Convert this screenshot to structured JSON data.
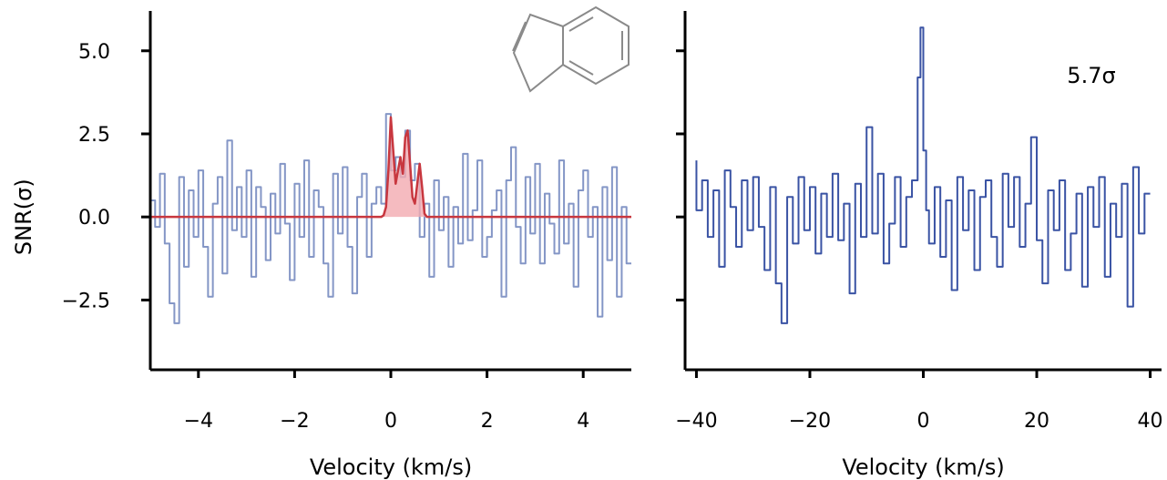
{
  "chart_data": [
    {
      "type": "line",
      "panel": "left",
      "xlabel": "Velocity (km/s)",
      "ylabel": "SNR(σ)",
      "xlim": [
        -5,
        5
      ],
      "ylim": [
        -4.6,
        6.2
      ],
      "xticks": [
        -4,
        -2,
        0,
        2,
        4
      ],
      "xtick_labels": [
        "−4",
        "−2",
        "0",
        "2",
        "4"
      ],
      "yticks": [
        -2.5,
        0.0,
        2.5,
        5.0
      ],
      "ytick_labels": [
        "−2.5",
        "0.0",
        "2.5",
        "5.0"
      ],
      "grid": false,
      "series": [
        {
          "style": "step",
          "color": "#8496c6",
          "x": [
            -5.0,
            -4.9,
            -4.8,
            -4.7,
            -4.6,
            -4.5,
            -4.4,
            -4.3,
            -4.2,
            -4.1,
            -4.0,
            -3.9,
            -3.8,
            -3.7,
            -3.6,
            -3.5,
            -3.4,
            -3.3,
            -3.2,
            -3.1,
            -3.0,
            -2.9,
            -2.8,
            -2.7,
            -2.6,
            -2.5,
            -2.4,
            -2.3,
            -2.2,
            -2.1,
            -2.0,
            -1.9,
            -1.8,
            -1.7,
            -1.6,
            -1.5,
            -1.4,
            -1.3,
            -1.2,
            -1.1,
            -1.0,
            -0.9,
            -0.8,
            -0.7,
            -0.6,
            -0.5,
            -0.4,
            -0.3,
            -0.2,
            -0.1,
            0.0,
            0.1,
            0.2,
            0.3,
            0.4,
            0.5,
            0.6,
            0.7,
            0.8,
            0.9,
            1.0,
            1.1,
            1.2,
            1.3,
            1.4,
            1.5,
            1.6,
            1.7,
            1.8,
            1.9,
            2.0,
            2.1,
            2.2,
            2.3,
            2.4,
            2.5,
            2.6,
            2.7,
            2.8,
            2.9,
            3.0,
            3.1,
            3.2,
            3.3,
            3.4,
            3.5,
            3.6,
            3.7,
            3.8,
            3.9,
            4.0,
            4.1,
            4.2,
            4.3,
            4.4,
            4.5,
            4.6,
            4.7,
            4.8,
            4.9,
            5.0
          ],
          "y": [
            1.7,
            0.5,
            -0.3,
            1.3,
            -0.8,
            -2.6,
            -3.2,
            1.2,
            -1.5,
            0.8,
            -0.6,
            1.4,
            -0.9,
            -2.4,
            0.4,
            1.2,
            -1.7,
            2.3,
            -0.4,
            0.9,
            -0.6,
            1.4,
            -1.8,
            0.9,
            0.3,
            -1.3,
            0.7,
            -0.5,
            1.6,
            -0.2,
            -1.9,
            1.0,
            -0.6,
            1.7,
            -1.2,
            0.8,
            0.3,
            -1.4,
            -2.4,
            1.3,
            -0.5,
            1.5,
            -0.9,
            -2.3,
            0.6,
            1.3,
            -1.2,
            0.4,
            0.9,
            0.4,
            3.1,
            1.4,
            1.8,
            1.2,
            2.6,
            1.1,
            1.6,
            -0.6,
            0.4,
            -1.8,
            1.1,
            -0.4,
            0.6,
            -1.5,
            0.3,
            -0.8,
            1.9,
            -0.7,
            0.2,
            1.7,
            -1.2,
            -0.6,
            0.2,
            0.8,
            -2.4,
            1.1,
            2.1,
            -0.3,
            -1.4,
            1.2,
            -0.5,
            1.6,
            -1.4,
            0.7,
            -0.2,
            -1.1,
            1.7,
            -0.8,
            0.4,
            -2.1,
            0.8,
            1.4,
            -0.6,
            0.3,
            -3.0,
            0.9,
            -1.3,
            1.5,
            -2.4,
            0.3,
            -1.4
          ]
        },
        {
          "style": "line",
          "color": "#c8373f",
          "fill": "#f2aab0",
          "x": [
            -5.0,
            -0.2,
            -0.15,
            -0.1,
            -0.05,
            0.0,
            0.05,
            0.1,
            0.15,
            0.2,
            0.25,
            0.3,
            0.35,
            0.4,
            0.45,
            0.5,
            0.55,
            0.6,
            0.65,
            0.7,
            0.75,
            5.0
          ],
          "y": [
            0.0,
            0.0,
            0.05,
            0.3,
            1.4,
            3.0,
            2.0,
            1.0,
            1.4,
            1.8,
            1.3,
            2.4,
            2.6,
            1.6,
            0.6,
            0.4,
            1.0,
            1.6,
            0.9,
            0.1,
            0.0,
            0.0
          ]
        }
      ],
      "inset": "indene-structure-icon"
    },
    {
      "type": "line",
      "panel": "right",
      "xlabel": "Velocity (km/s)",
      "xlim": [
        -42,
        42
      ],
      "ylim": [
        -4.6,
        6.2
      ],
      "xticks": [
        -40,
        -20,
        0,
        20,
        40
      ],
      "xtick_labels": [
        "−40",
        "−20",
        "0",
        "20",
        "40"
      ],
      "yticks": [
        -2.5,
        0.0,
        2.5,
        5.0
      ],
      "grid": false,
      "annotation": "5.7σ",
      "series": [
        {
          "style": "step",
          "color": "#3a53a4",
          "x": [
            -40,
            -39,
            -38,
            -37,
            -36,
            -35,
            -34,
            -33,
            -32,
            -31,
            -30,
            -29,
            -28,
            -27,
            -26,
            -25,
            -24,
            -23,
            -22,
            -21,
            -20,
            -19,
            -18,
            -17,
            -16,
            -15,
            -14,
            -13,
            -12,
            -11,
            -10,
            -9,
            -8,
            -7,
            -6,
            -5,
            -4,
            -3,
            -2,
            -1,
            -0.5,
            0,
            0.5,
            1,
            2,
            3,
            4,
            5,
            6,
            7,
            8,
            9,
            10,
            11,
            12,
            13,
            14,
            15,
            16,
            17,
            18,
            19,
            20,
            21,
            22,
            23,
            24,
            25,
            26,
            27,
            28,
            29,
            30,
            31,
            32,
            33,
            34,
            35,
            36,
            37,
            38,
            39,
            40
          ],
          "y": [
            1.7,
            0.2,
            1.1,
            -0.6,
            0.8,
            -1.5,
            1.4,
            0.3,
            -0.9,
            1.1,
            -0.4,
            1.2,
            -0.3,
            -1.6,
            0.9,
            -2.0,
            -3.2,
            0.6,
            -0.8,
            1.2,
            -0.4,
            0.9,
            -1.1,
            0.7,
            -0.6,
            1.3,
            -0.7,
            0.4,
            -2.3,
            1.0,
            -0.6,
            2.7,
            -0.5,
            1.3,
            -1.4,
            -0.2,
            1.2,
            -0.9,
            0.6,
            1.1,
            4.2,
            5.7,
            2.0,
            0.2,
            -0.8,
            0.9,
            -1.2,
            0.5,
            -2.2,
            1.2,
            -0.4,
            0.8,
            -1.6,
            0.6,
            1.1,
            -0.6,
            -1.5,
            1.3,
            -0.3,
            1.2,
            -0.9,
            0.4,
            2.4,
            -0.7,
            -2.0,
            0.8,
            -0.4,
            1.1,
            -1.6,
            -0.5,
            0.7,
            -2.1,
            0.9,
            -0.3,
            1.2,
            -1.8,
            0.4,
            -0.6,
            1.0,
            -2.7,
            1.5,
            -0.5,
            0.7
          ]
        }
      ]
    }
  ]
}
